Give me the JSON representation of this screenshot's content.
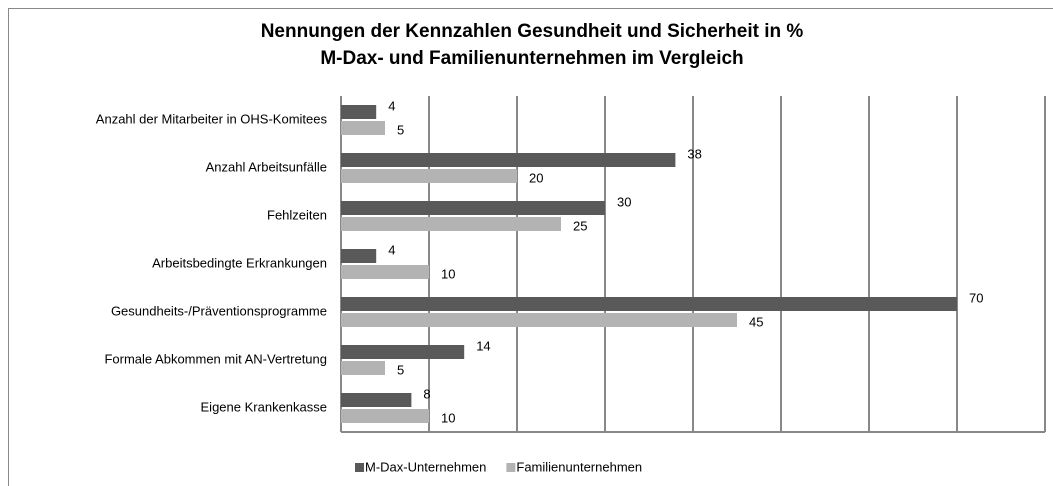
{
  "chart_data": {
    "type": "bar",
    "orientation": "horizontal",
    "title": "Nennungen der Kennzahlen Gesundheit und Sicherheit in %",
    "subtitle": "M-Dax- und Familienunternehmen im Vergleich",
    "categories": [
      "Anzahl der Mitarbeiter in OHS-Komitees",
      "Anzahl Arbeitsunfälle",
      "Fehlzeiten",
      "Arbeitsbedingte Erkrankungen",
      "Gesundheits-/Präventionsprogramme",
      "Formale Abkommen mit AN-Vertretung",
      "Eigene Krankenkasse"
    ],
    "series": [
      {
        "name": "M-Dax-Unternehmen",
        "color": "#595959",
        "values": [
          4,
          38,
          30,
          4,
          70,
          14,
          8
        ]
      },
      {
        "name": "Familienunternehmen",
        "color": "#b3b3b3",
        "values": [
          5,
          20,
          25,
          10,
          45,
          5,
          10
        ]
      }
    ],
    "xlim": [
      0,
      80
    ],
    "xticks": [
      0,
      10,
      20,
      30,
      40,
      50,
      60,
      70,
      80
    ],
    "grid": true,
    "legend": "bottom"
  }
}
